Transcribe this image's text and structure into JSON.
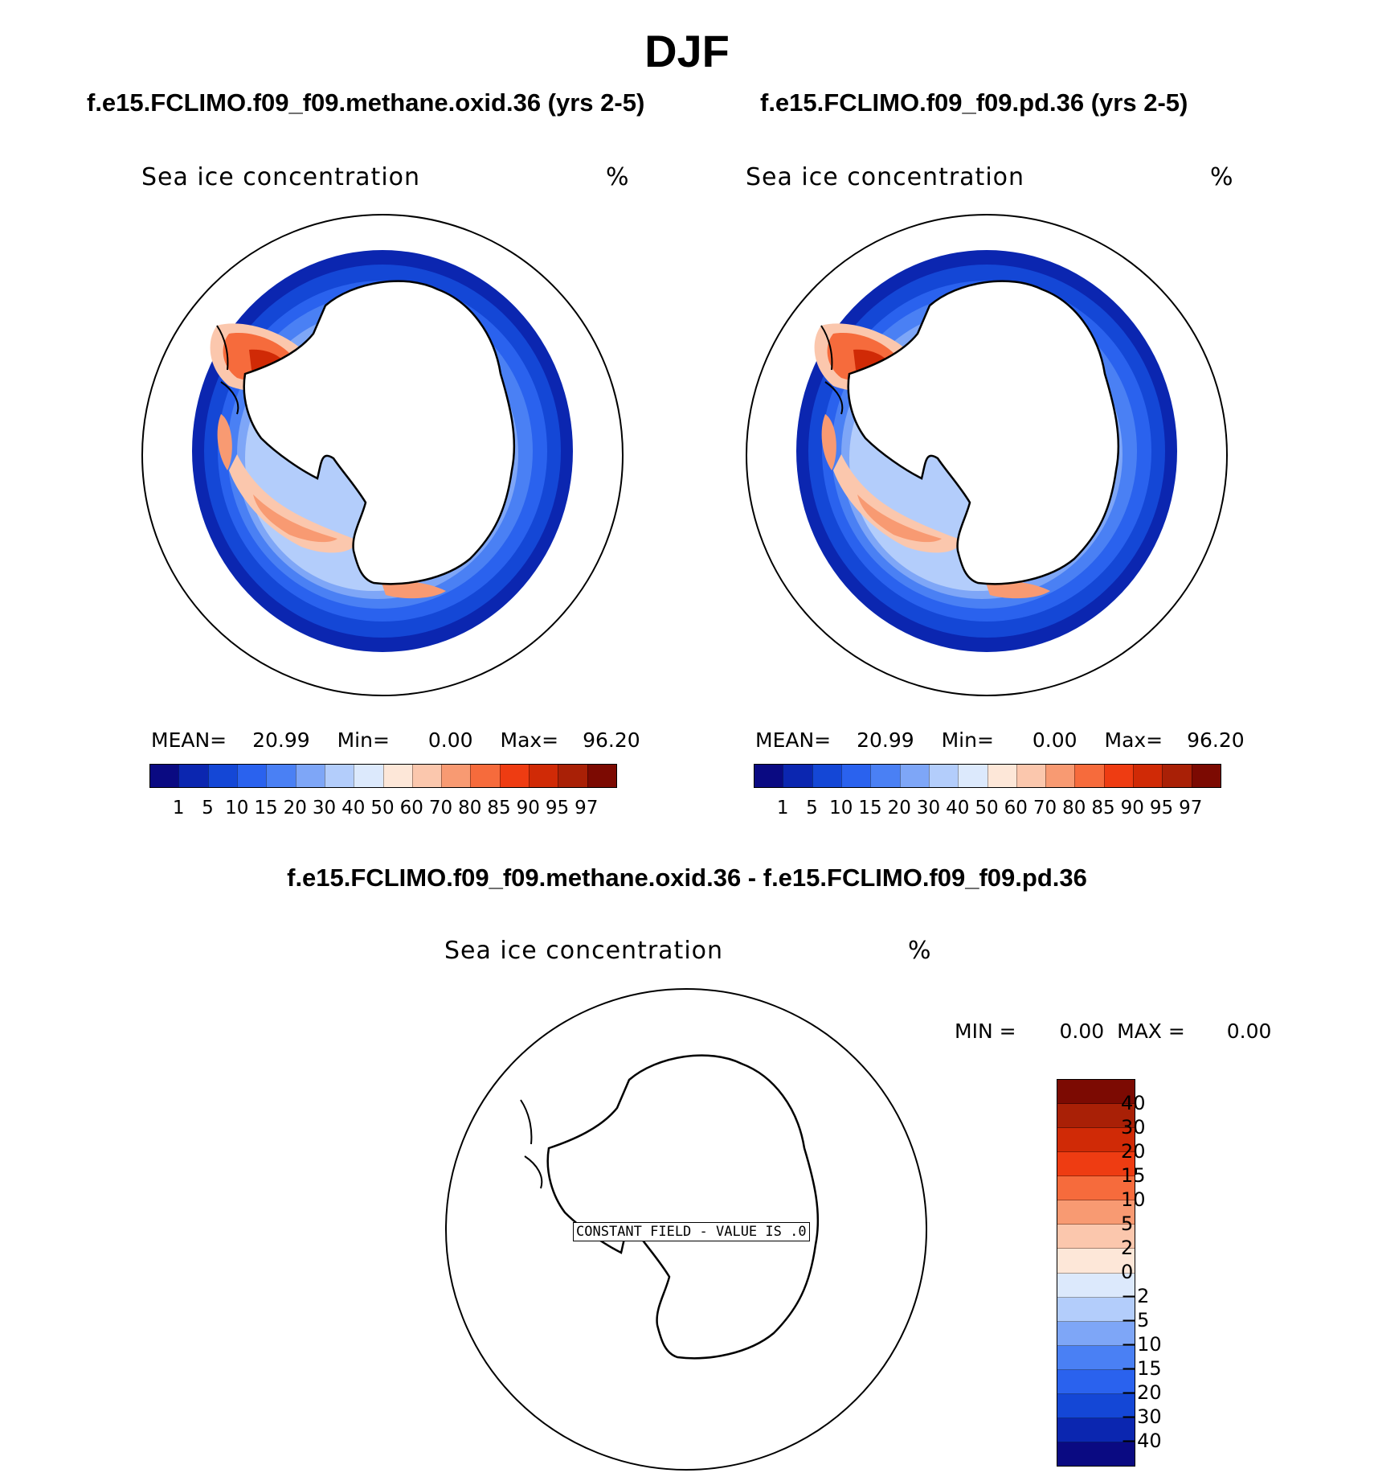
{
  "title": "DJF",
  "panels": [
    {
      "case_title": "f.e15.FCLIMO.f09_f09.methane.oxid.36 (yrs 2-5)",
      "variable": "Sea ice concentration",
      "units": "%",
      "stats": {
        "mean_label": "MEAN=",
        "mean": "20.99",
        "min_label": "Min=",
        "min": "0.00",
        "max_label": "Max=",
        "max": "96.20"
      }
    },
    {
      "case_title": "f.e15.FCLIMO.f09_f09.pd.36 (yrs 2-5)",
      "variable": "Sea ice concentration",
      "units": "%",
      "stats": {
        "mean_label": "MEAN=",
        "mean": "20.99",
        "min_label": "Min=",
        "min": "0.00",
        "max_label": "Max=",
        "max": "96.20"
      }
    }
  ],
  "abs_colorbar": {
    "levels": [
      "1",
      "5",
      "10",
      "15",
      "20",
      "30",
      "40",
      "50",
      "60",
      "70",
      "80",
      "85",
      "90",
      "95",
      "97"
    ],
    "colors": [
      "#0a0a82",
      "#0b26b0",
      "#1447d6",
      "#2a62ee",
      "#4a80f4",
      "#7ea6f7",
      "#b3cdfb",
      "#dce9fc",
      "#fde7d8",
      "#fbc7ad",
      "#f89a72",
      "#f66b3c",
      "#ee3c12",
      "#d02a06",
      "#a92006",
      "#7c0a02"
    ]
  },
  "diff": {
    "title": "f.e15.FCLIMO.f09_f09.methane.oxid.36 - f.e15.FCLIMO.f09_f09.pd.36",
    "variable": "Sea ice concentration",
    "units": "%",
    "min_label": "MIN =",
    "min": "0.00",
    "max_label": "MAX =",
    "max": "0.00",
    "constant_field_text": "CONSTANT FIELD - VALUE IS .0",
    "levels": [
      "40",
      "30",
      "20",
      "15",
      "10",
      "5",
      "2",
      "0",
      "−2",
      "−5",
      "−10",
      "−15",
      "−20",
      "−30",
      "−40"
    ],
    "colors": [
      "#7c0a02",
      "#a92006",
      "#d02a06",
      "#ee3c12",
      "#f66b3c",
      "#f89a72",
      "#fbc7ad",
      "#fde7d8",
      "#dce9fc",
      "#b3cdfb",
      "#7ea6f7",
      "#4a80f4",
      "#2a62ee",
      "#1447d6",
      "#0b26b0",
      "#0a0a82"
    ]
  }
}
